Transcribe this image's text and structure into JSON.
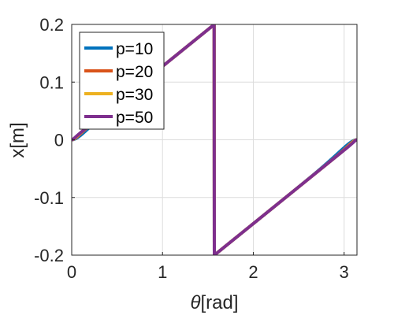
{
  "chart_data": {
    "type": "line",
    "xlabel_symbol": "θ",
    "xlabel_unit": "[rad]",
    "ylabel": "x[m]",
    "xlim": [
      0,
      3.1416
    ],
    "ylim": [
      -0.2,
      0.2
    ],
    "xticks": [
      0,
      1,
      2,
      3
    ],
    "xtick_labels": [
      "0",
      "1",
      "2",
      "3"
    ],
    "yticks": [
      0.2,
      0.1,
      0,
      -0.1,
      -0.2
    ],
    "ytick_labels": [
      "0.2",
      "0.1",
      "0",
      "-0.1",
      "-0.2"
    ],
    "grid": true,
    "legend_position": "top-left",
    "series": [
      {
        "name": "p=10",
        "p": 10,
        "color": "#0072BD"
      },
      {
        "name": "p=20",
        "p": 20,
        "color": "#D95319"
      },
      {
        "name": "p=30",
        "p": 30,
        "color": "#EDB120"
      },
      {
        "name": "p=50",
        "p": 50,
        "color": "#7E2F8E"
      }
    ]
  }
}
